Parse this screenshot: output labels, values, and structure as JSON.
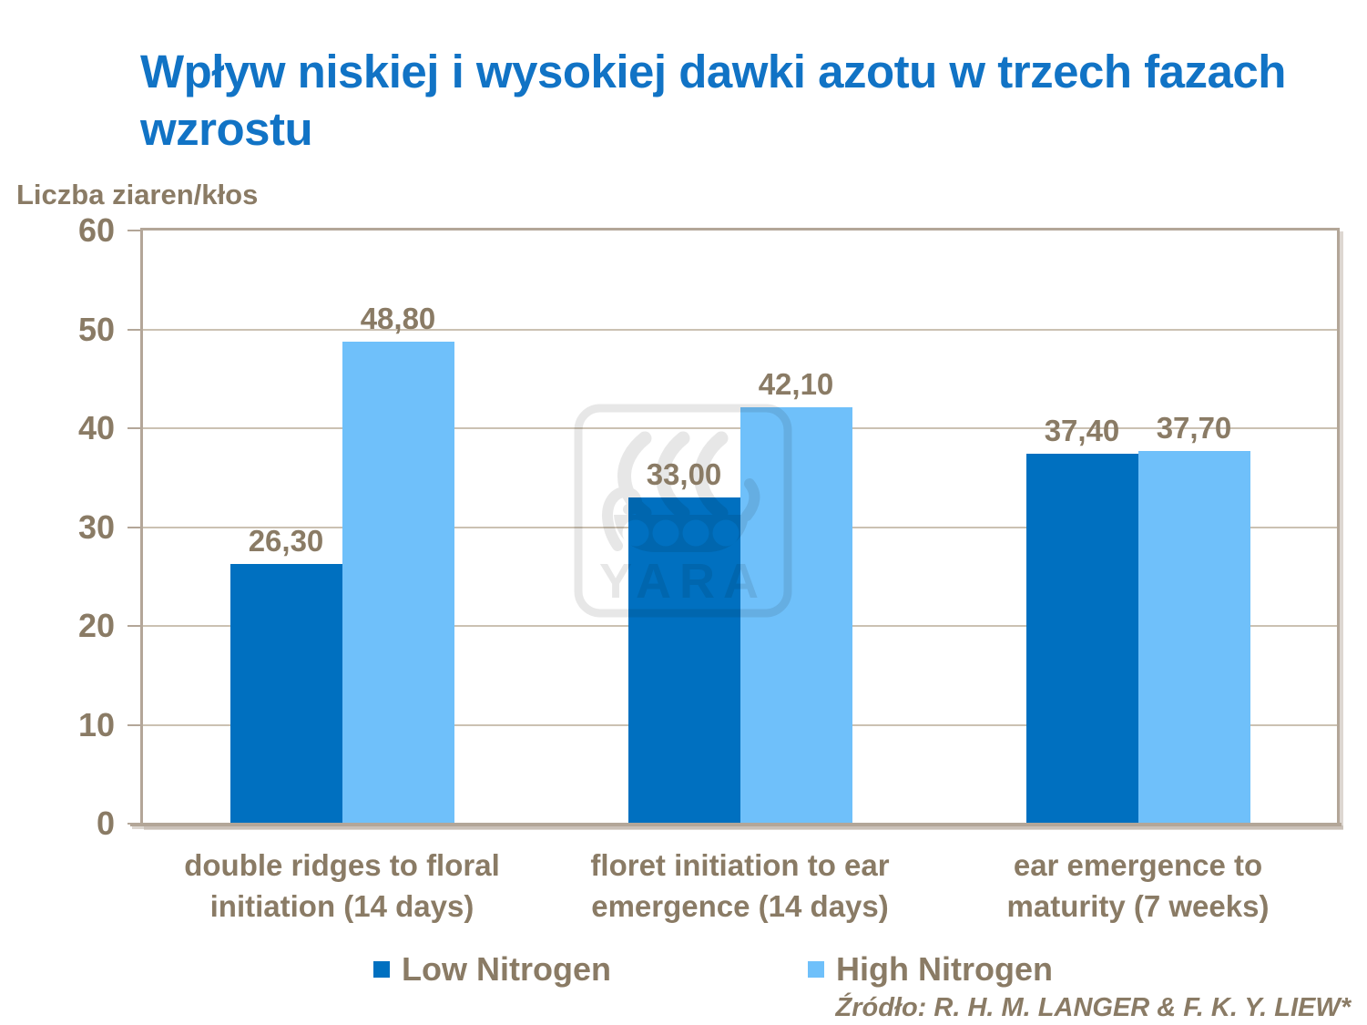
{
  "title": "Wpływ niskiej i wysokiej dawki azotu w trzech fazach wzrostu",
  "y_axis_title": "Liczba ziaren/kłos",
  "source": "Źródło: R. H. M. LANGER & F. K. Y. LIEW*",
  "watermark_text": "YARA",
  "colors": {
    "title_blue": "#1173C5",
    "text_brown": "#8A7B65",
    "axis_tan": "#B3A698",
    "gridline_tan": "#CBC1B2",
    "bar_low_nitrogen": "#0070C0",
    "bar_high_nitrogen": "#6FC0FA",
    "watermark_gray": "#E7E7E7",
    "background": "#FFFFFF"
  },
  "legend": {
    "position": "bottom",
    "items": [
      {
        "label": "Low Nitrogen",
        "color": "#0070C0"
      },
      {
        "label": "High Nitrogen",
        "color": "#6FC0FA"
      }
    ]
  },
  "chart_data": {
    "type": "bar",
    "title": "Wpływ niskiej i wysokiej dawki azotu w trzech fazach wzrostu",
    "xlabel": "",
    "ylabel": "Liczba ziaren/kłos",
    "ylim": [
      0,
      60
    ],
    "yticks": [
      0,
      10,
      20,
      30,
      40,
      50,
      60
    ],
    "grid": true,
    "legend_position": "bottom",
    "categories": [
      "double ridges to floral initiation (14 days)",
      "floret initiation to ear emergence (14 days)",
      "ear emergence to maturity (7 weeks)"
    ],
    "category_lines": [
      [
        "double ridges to floral",
        "initiation (14 days)"
      ],
      [
        "floret initiation to ear",
        "emergence (14 days)"
      ],
      [
        "ear emergence to",
        "maturity (7 weeks)"
      ]
    ],
    "series": [
      {
        "name": "Low Nitrogen",
        "color": "#0070C0",
        "values": [
          26.3,
          33.0,
          37.4
        ],
        "labels": [
          "26,30",
          "33,00",
          "37,40"
        ]
      },
      {
        "name": "High Nitrogen",
        "color": "#6FC0FA",
        "values": [
          48.8,
          42.1,
          37.7
        ],
        "labels": [
          "48,80",
          "42,10",
          "37,70"
        ]
      }
    ]
  }
}
